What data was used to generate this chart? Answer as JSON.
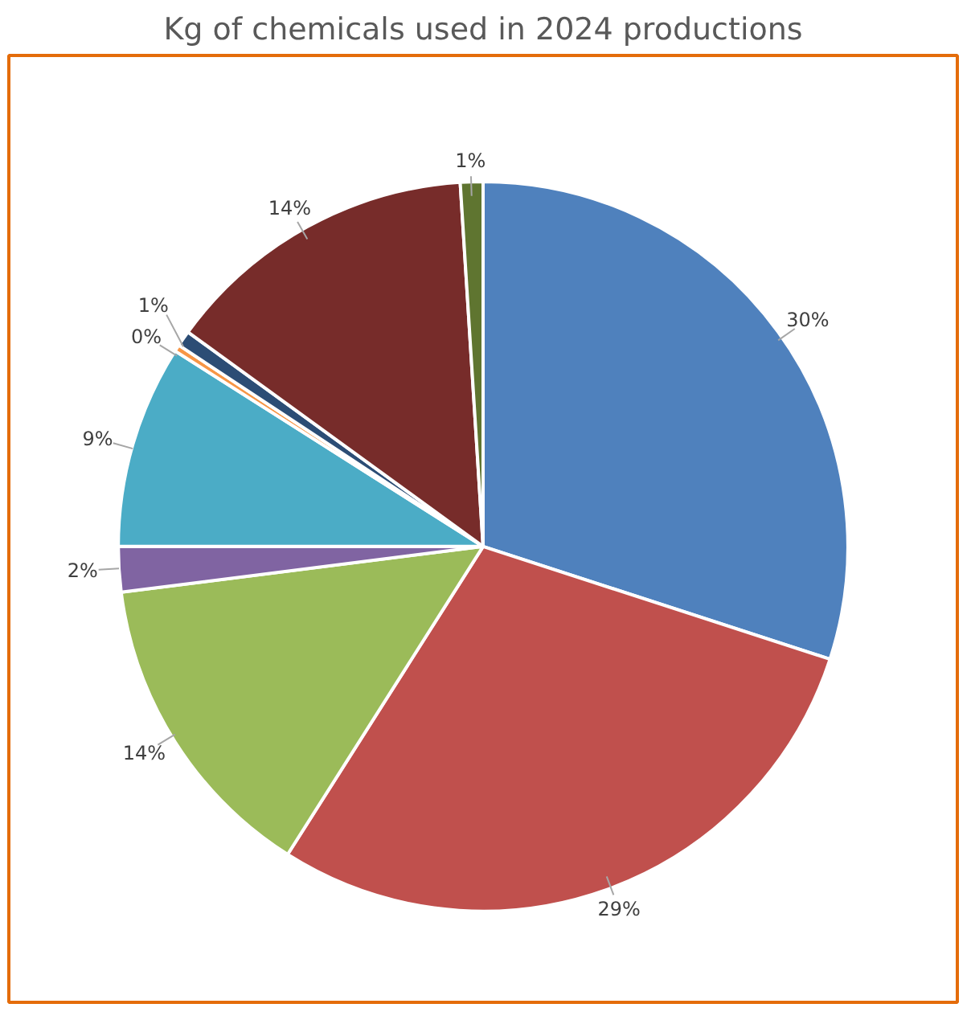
{
  "chart_data": {
    "type": "pie",
    "title": "Kg of chemicals used in 2024 productions",
    "categories": [
      null,
      null,
      null,
      null,
      null,
      null,
      null,
      null,
      null
    ],
    "values": [
      30,
      29,
      14,
      2,
      9,
      0.3,
      0.7,
      14,
      1
    ],
    "value_labels": [
      "30%",
      "29%",
      "14%",
      "2%",
      "9%",
      "0%",
      "1%",
      "14%",
      "1%"
    ],
    "colors": [
      "#4f81bd",
      "#c0504d",
      "#9bbb59",
      "#8064a2",
      "#4bacc6",
      "#f79646",
      "#2c4d75",
      "#772c2a",
      "#5f7530"
    ]
  }
}
